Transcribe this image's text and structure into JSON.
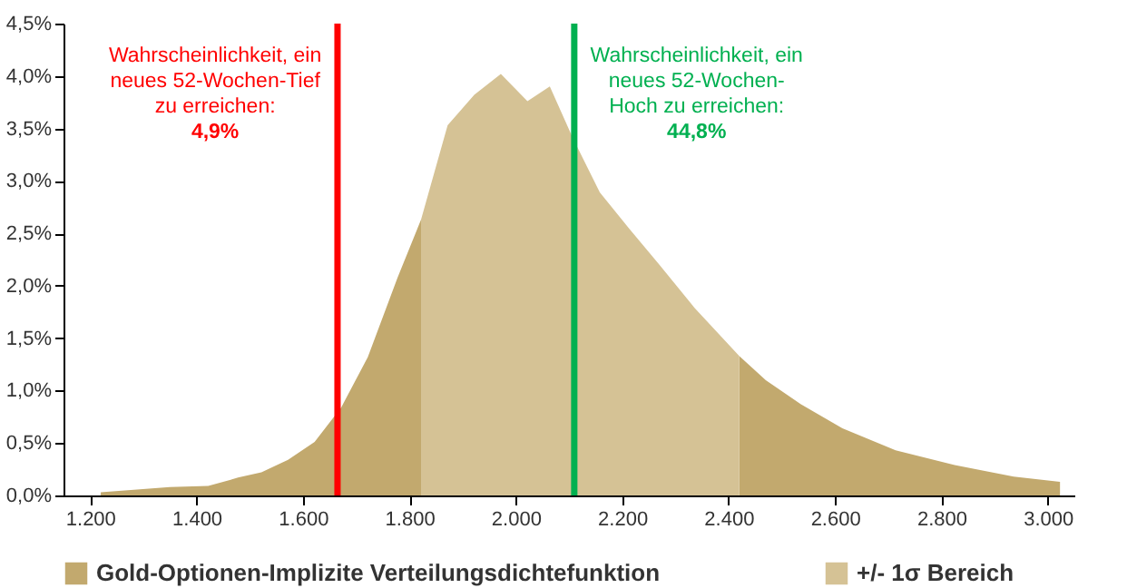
{
  "chart_data": {
    "type": "area",
    "x": [
      1220,
      1350,
      1422,
      1478,
      1522,
      1572,
      1622,
      1672,
      1722,
      1778,
      1822,
      1872,
      1922,
      1972,
      2022,
      2064,
      2108,
      2158,
      2214,
      2270,
      2336,
      2420,
      2470,
      2536,
      2614,
      2714,
      2825,
      2936,
      3023
    ],
    "series": [
      {
        "name": "Gold-Optionen-Implizite Verteilungsdichtefunktion",
        "color": "#c2a96e",
        "values": [
          0.03,
          0.08,
          0.09,
          0.17,
          0.22,
          0.34,
          0.51,
          0.84,
          1.32,
          2.08,
          2.63,
          null,
          null,
          null,
          null,
          null,
          null,
          null,
          null,
          null,
          null,
          1.33,
          1.1,
          0.87,
          0.64,
          0.43,
          0.29,
          0.18,
          0.13
        ]
      },
      {
        "name": "+/- 1σ Bereich",
        "color": "#d5c295",
        "x": [
          1822,
          1872,
          1922,
          1972,
          2022,
          2064,
          2108,
          2158,
          2214,
          2270,
          2336,
          2420
        ],
        "values": [
          2.63,
          3.53,
          3.82,
          4.02,
          3.76,
          3.9,
          3.4,
          2.89,
          2.54,
          2.2,
          1.79,
          1.33
        ]
      }
    ],
    "xlim": [
      1150,
      3050
    ],
    "xticks": [
      {
        "value": 1200,
        "label": "1.200"
      },
      {
        "value": 1400,
        "label": "1.400"
      },
      {
        "value": 1600,
        "label": "1.600"
      },
      {
        "value": 1800,
        "label": "1.800"
      },
      {
        "value": 2000,
        "label": "2.000"
      },
      {
        "value": 2200,
        "label": "2.200"
      },
      {
        "value": 2400,
        "label": "2.400"
      },
      {
        "value": 2600,
        "label": "2.600"
      },
      {
        "value": 2800,
        "label": "2.800"
      },
      {
        "value": 3000,
        "label": "3.000"
      }
    ],
    "ylim": [
      0,
      4.5
    ],
    "yticks": [
      {
        "value": 0,
        "label": "0,0%"
      },
      {
        "value": 0.5,
        "label": "0,5%"
      },
      {
        "value": 1,
        "label": "1,0%"
      },
      {
        "value": 1.5,
        "label": "1,5%"
      },
      {
        "value": 2,
        "label": "2,0%"
      },
      {
        "value": 2.5,
        "label": "2,5%"
      },
      {
        "value": 3,
        "label": "3,0%"
      },
      {
        "value": 3.5,
        "label": "3,5%"
      },
      {
        "value": 4,
        "label": "4,0%"
      },
      {
        "value": 4.5,
        "label": "4,5%"
      }
    ],
    "ref_lines": [
      {
        "axis": "x",
        "value": 1665,
        "color": "#ff0000"
      },
      {
        "axis": "x",
        "value": 2110,
        "color": "#00b050"
      }
    ],
    "annotations": [
      "Wahrscheinlichkeit, ein\nneues 52-Wochen-Tief\nzu erreichen:\n4,9%",
      "Wahrscheinlichkeit, ein\nneues 52-Wochen-\nHoch zu erreichen:\n44,8%"
    ],
    "grid": false,
    "legend": "bottom"
  }
}
